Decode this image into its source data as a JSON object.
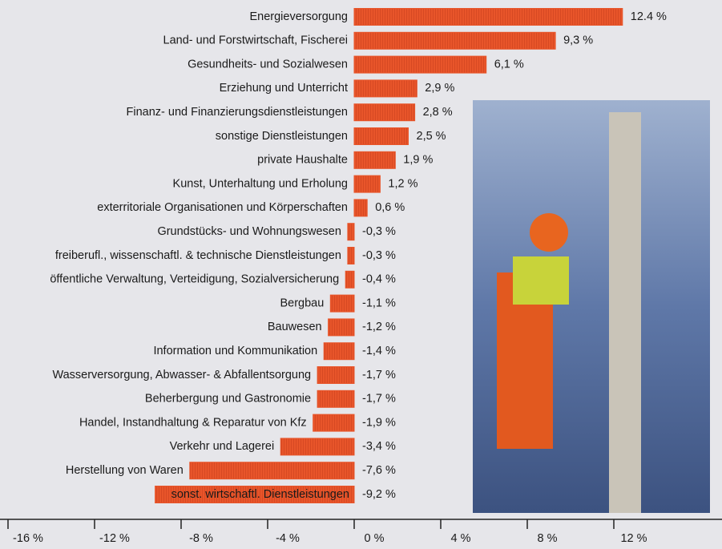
{
  "chart_data": {
    "type": "bar",
    "orientation": "horizontal",
    "categories": [
      "Energieversorgung",
      "Land- und Forstwirtschaft, Fischerei",
      "Gesundheits- und Sozialwesen",
      "Erziehung und Unterricht",
      "Finanz- und Finanzierungsdienstleistungen",
      "sonstige Dienstleistungen",
      "private Haushalte",
      "Kunst, Unterhaltung und Erholung",
      "exterritoriale Organisationen und Körperschaften",
      "Grundstücks- und Wohnungswesen",
      "freiberufl., wissenschaftl. & technische Dienstleistungen",
      "öffentliche Verwaltung, Verteidigung, Sozialversicherung",
      "Bergbau",
      "Bauwesen",
      "Information und Kommunikation",
      "Wasserversorgung, Abwasser- & Abfallentsorgung",
      "Beherbergung und Gastronomie",
      "Handel, Instandhaltung & Reparatur von Kfz",
      "Verkehr und Lagerei",
      "Herstellung von Waren",
      "sonst. wirtschaftl. Dienstleistungen"
    ],
    "values": [
      12.4,
      9.3,
      6.1,
      2.9,
      2.8,
      2.5,
      1.9,
      1.2,
      0.6,
      -0.3,
      -0.3,
      -0.4,
      -1.1,
      -1.2,
      -1.4,
      -1.7,
      -1.7,
      -1.9,
      -3.4,
      -7.6,
      -9.2
    ],
    "value_labels": [
      "12.4 %",
      "9,3 %",
      "6,1 %",
      "2,9 %",
      "2,8 %",
      "2,5 %",
      "1,9 %",
      "1,2 %",
      "0,6 %",
      "-0,3 %",
      "-0,3 %",
      "-0,4 %",
      "-1,1 %",
      "-1,2 %",
      "-1,4 %",
      "-1,7 %",
      "-1,7 %",
      "-1,9 %",
      "-3,4 %",
      "-7,6 %",
      "-9,2 %"
    ],
    "color": "#e8552a",
    "xlim": [
      -16,
      17
    ],
    "xticks": [
      {
        "value": -16,
        "label": "-16 %"
      },
      {
        "value": -12,
        "label": "-12 %"
      },
      {
        "value": -8,
        "label": "-8 %"
      },
      {
        "value": -4,
        "label": "-4 %"
      },
      {
        "value": 0,
        "label": "0 %"
      },
      {
        "value": 4,
        "label": "4 %"
      },
      {
        "value": 8,
        "label": "8 %"
      },
      {
        "value": 12,
        "label": "12 %"
      }
    ],
    "grid": false
  }
}
